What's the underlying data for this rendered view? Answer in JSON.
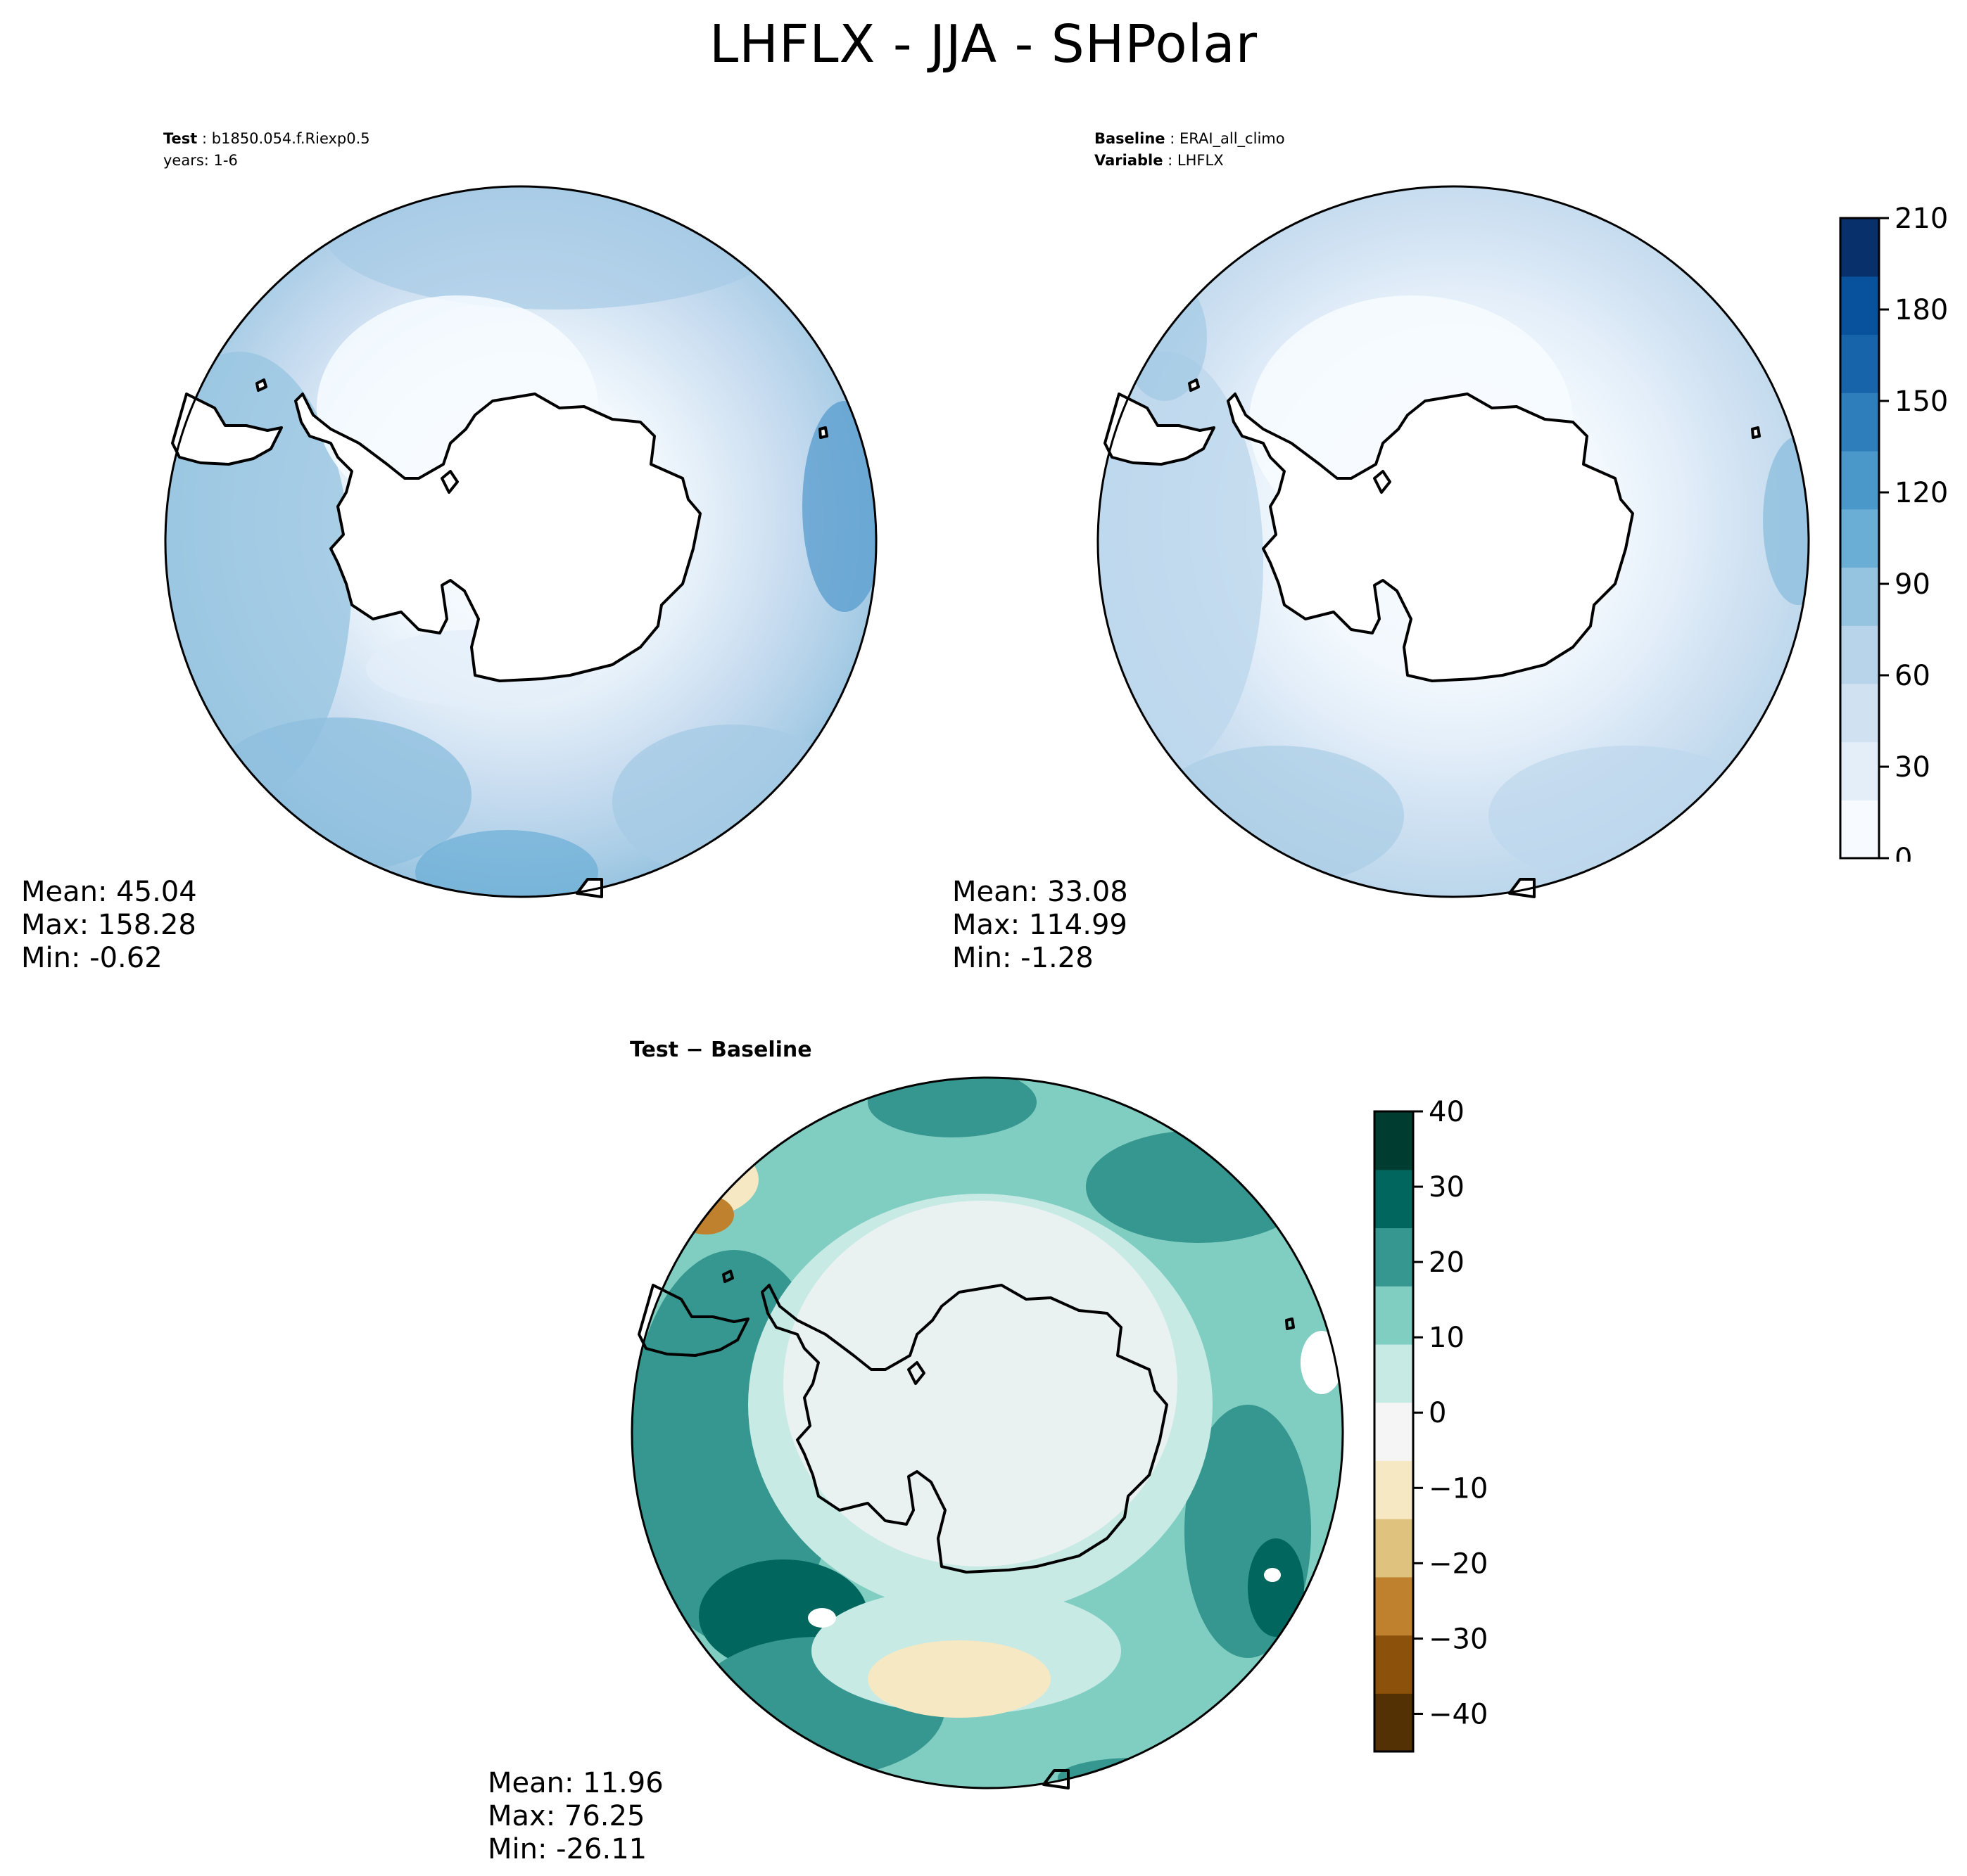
{
  "figure": {
    "title": "LHFLX - JJA - SHPolar"
  },
  "test_panel": {
    "case_label": "Test",
    "case_name": "b1850.054.f.Riexp0.5",
    "years_label": "years: 1-6",
    "stats": {
      "mean": "Mean: 45.04",
      "max": "Max: 158.28",
      "min": "Min: -0.62"
    }
  },
  "baseline_panel": {
    "case_label": "Baseline",
    "case_name": "ERAI_all_climo",
    "variable_label": "Variable",
    "variable_name": "LHFLX",
    "stats": {
      "mean": "Mean: 33.08",
      "max": "Max: 114.99",
      "min": "Min: -1.28"
    }
  },
  "diff_panel": {
    "title": "Test − Baseline",
    "stats": {
      "mean": "Mean: 11.96",
      "max": "Max: 76.25",
      "min": "Min: -26.11"
    }
  },
  "colorbars": {
    "field": {
      "ticks": [
        "0",
        "30",
        "60",
        "90",
        "120",
        "150",
        "180",
        "210"
      ],
      "range": [
        0,
        210
      ],
      "colors": [
        "#f7fbff",
        "#e3eef9",
        "#d0e1f2",
        "#b7d4ea",
        "#94c4df",
        "#6aaed6",
        "#4a98c9",
        "#2e7ebc",
        "#1764ab",
        "#08519c",
        "#08306b"
      ]
    },
    "diff": {
      "ticks": [
        "40",
        "30",
        "20",
        "10",
        "0",
        "−10",
        "−20",
        "−30",
        "−40"
      ],
      "range": [
        -45,
        40
      ],
      "colors": [
        "#543005",
        "#8c510a",
        "#bf812d",
        "#dfc27d",
        "#f6e8c3",
        "#f5f5f5",
        "#c7eae5",
        "#80cdc1",
        "#35978f",
        "#01665e",
        "#003c30"
      ]
    }
  }
}
